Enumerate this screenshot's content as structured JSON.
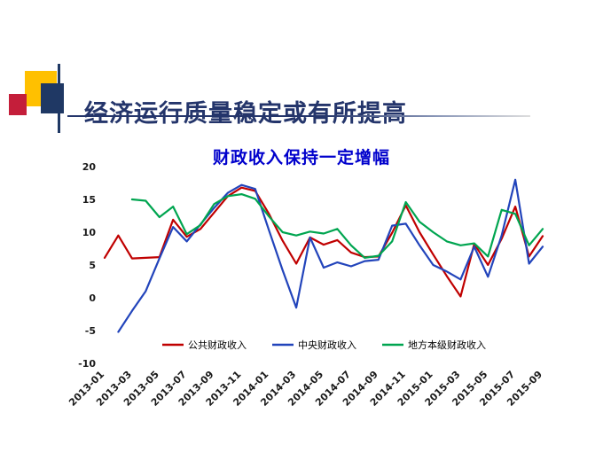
{
  "slide": {
    "title": "经济运行质量稳定或有所提高"
  },
  "colors": {
    "slide_title": "#24356B",
    "chart_title": "#0000CC",
    "accent_yellow": "#FFC000",
    "accent_navy": "#1F3864",
    "accent_red": "#C41E3A"
  },
  "chart_data": {
    "type": "line",
    "title": "财政收入保持一定增幅",
    "xlabel": "",
    "ylabel": "",
    "ylim": [
      -10,
      20
    ],
    "yticks": [
      20,
      15,
      10,
      5,
      0,
      -5,
      -10
    ],
    "grid": false,
    "legend_position": "bottom-inside",
    "x": [
      "2013-01",
      "2013-02",
      "2013-03",
      "2013-04",
      "2013-05",
      "2013-06",
      "2013-07",
      "2013-08",
      "2013-09",
      "2013-10",
      "2013-11",
      "2013-12",
      "2014-01",
      "2014-02",
      "2014-03",
      "2014-04",
      "2014-05",
      "2014-06",
      "2014-07",
      "2014-08",
      "2014-09",
      "2014-10",
      "2014-11",
      "2014-12",
      "2015-01",
      "2015-02",
      "2015-03",
      "2015-04",
      "2015-05",
      "2015-06",
      "2015-07",
      "2015-08",
      "2015-09"
    ],
    "x_tick_labels": [
      "2013-01",
      "2013-03",
      "2013-05",
      "2013-07",
      "2013-09",
      "2013-11",
      "2014-01",
      "2014-03",
      "2014-05",
      "2014-07",
      "2014-09",
      "2014-11",
      "2015-01",
      "2015-03",
      "2015-05",
      "2015-07",
      "2015-09"
    ],
    "series": [
      {
        "name": "公共财政收入",
        "color": "#C00000",
        "values": [
          6.1,
          9.5,
          6.0,
          6.1,
          6.2,
          11.9,
          9.3,
          10.5,
          13.0,
          15.5,
          16.8,
          16.3,
          12.8,
          8.7,
          5.2,
          9.2,
          8.1,
          8.8,
          6.9,
          6.2,
          6.3,
          9.9,
          14.1,
          10.0,
          6.6,
          3.3,
          0.2,
          8.2,
          5.0,
          9.0,
          13.9,
          6.3,
          9.4
        ]
      },
      {
        "name": "中央财政收入",
        "color": "#2244BB",
        "values": [
          null,
          -5.2,
          -2.0,
          1.0,
          6.0,
          10.8,
          8.6,
          11.2,
          13.7,
          16.0,
          17.2,
          16.6,
          10.3,
          4.2,
          -1.5,
          9.2,
          4.6,
          5.4,
          4.8,
          5.6,
          5.8,
          11.0,
          11.3,
          8.0,
          5.0,
          4.0,
          2.8,
          7.8,
          3.2,
          9.5,
          18.0,
          5.2,
          7.8
        ]
      },
      {
        "name": "地方本级财政收入",
        "color": "#00A550",
        "values": [
          null,
          null,
          15.0,
          14.8,
          12.3,
          13.9,
          9.7,
          11.1,
          14.3,
          15.5,
          15.8,
          15.1,
          12.4,
          10.0,
          9.5,
          10.1,
          9.8,
          10.5,
          8.0,
          6.1,
          6.4,
          8.6,
          14.6,
          11.6,
          10.0,
          8.6,
          8.0,
          8.3,
          6.3,
          13.4,
          12.8,
          8.0,
          10.5
        ]
      }
    ]
  }
}
